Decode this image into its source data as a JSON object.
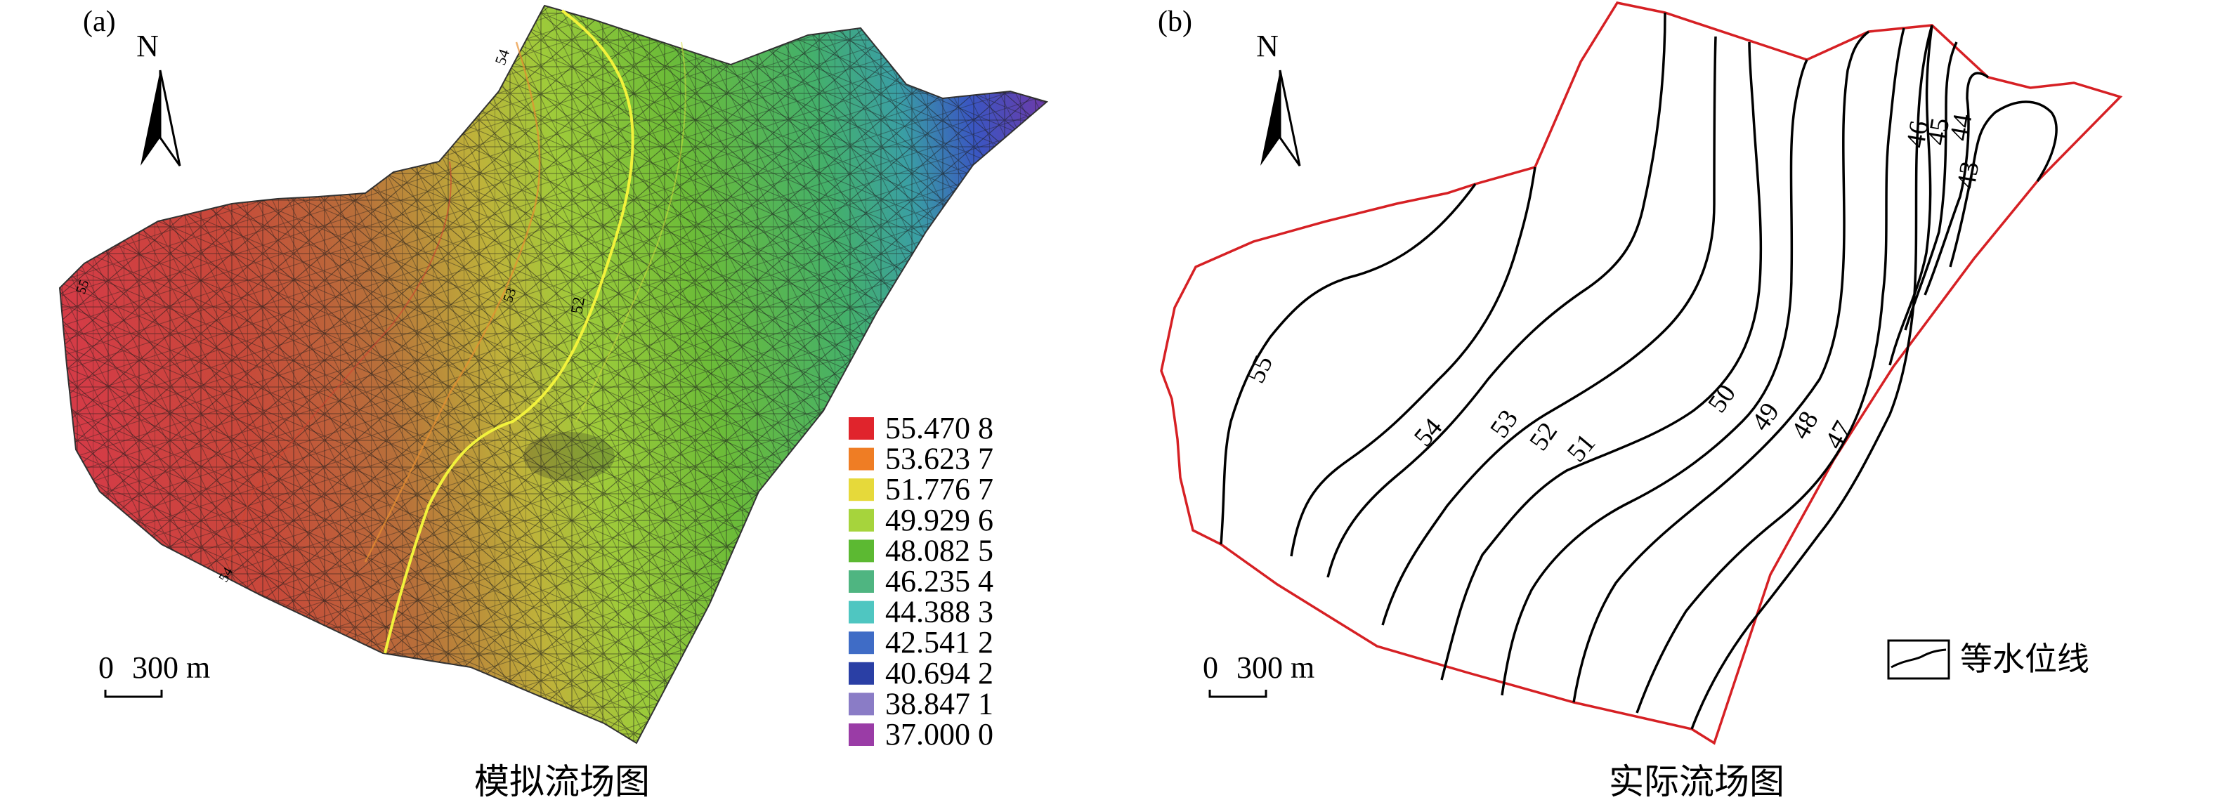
{
  "panel_a": {
    "label": "(a)",
    "north": "N",
    "scale_zero": "0",
    "scale_dist": "300 m",
    "caption": "模拟流场图",
    "legend": [
      {
        "value": "55.470 8",
        "color": "#e0242c"
      },
      {
        "value": "53.623 7",
        "color": "#ef7d24"
      },
      {
        "value": "51.776 7",
        "color": "#e6d93a"
      },
      {
        "value": "49.929 6",
        "color": "#a6d43c"
      },
      {
        "value": "48.082 5",
        "color": "#5cb932"
      },
      {
        "value": "46.235 4",
        "color": "#4fb581"
      },
      {
        "value": "44.388 3",
        "color": "#4fc6c1"
      },
      {
        "value": "42.541 2",
        "color": "#3f6cc6"
      },
      {
        "value": "40.694 2",
        "color": "#2a3fa5"
      },
      {
        "value": "38.847 1",
        "color": "#8a7cc6"
      },
      {
        "value": "37.000 0",
        "color": "#9a3ca6"
      }
    ],
    "contour_labels": [
      "54",
      "53",
      "52",
      "55",
      "54"
    ]
  },
  "panel_b": {
    "label": "(b)",
    "north": "N",
    "scale_zero": "0",
    "scale_dist": "300 m",
    "caption": "实际流场图",
    "legend_label": "等水位线",
    "contour_labels": [
      "55",
      "54",
      "53",
      "52",
      "51",
      "50",
      "49",
      "48",
      "47",
      "46",
      "45",
      "44",
      "43"
    ]
  }
}
